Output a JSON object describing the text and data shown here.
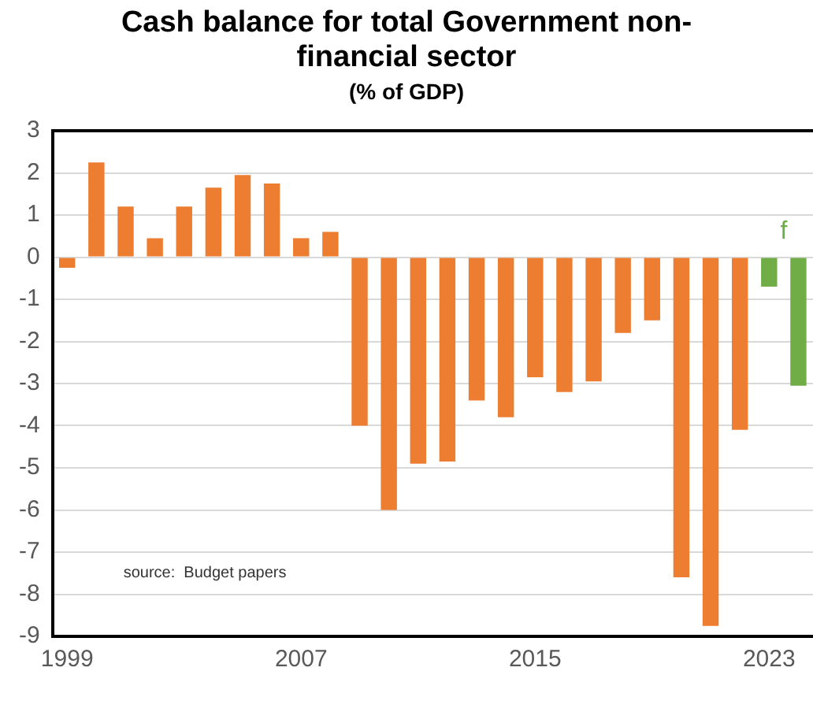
{
  "chart_data": {
    "type": "bar",
    "title": "Cash balance for total Government non-financial sector",
    "subtitle": "(% of GDP)",
    "categories": [
      "1999",
      null,
      null,
      null,
      null,
      null,
      null,
      null,
      "2007",
      null,
      null,
      null,
      null,
      null,
      null,
      null,
      "2015",
      null,
      null,
      null,
      null,
      null,
      null,
      null,
      "2023",
      null
    ],
    "values": [
      -0.25,
      2.25,
      1.2,
      0.45,
      1.2,
      1.65,
      1.95,
      1.75,
      0.45,
      0.6,
      -4.0,
      -6.0,
      -4.9,
      -4.85,
      -3.4,
      -3.8,
      -2.85,
      -3.2,
      -2.95,
      -1.8,
      -1.5,
      -7.6,
      -8.75,
      -4.1,
      -0.7,
      -3.05
    ],
    "colors": [
      "#ed7d31",
      "#ed7d31",
      "#ed7d31",
      "#ed7d31",
      "#ed7d31",
      "#ed7d31",
      "#ed7d31",
      "#ed7d31",
      "#ed7d31",
      "#ed7d31",
      "#ed7d31",
      "#ed7d31",
      "#ed7d31",
      "#ed7d31",
      "#ed7d31",
      "#ed7d31",
      "#ed7d31",
      "#ed7d31",
      "#ed7d31",
      "#ed7d31",
      "#ed7d31",
      "#ed7d31",
      "#ed7d31",
      "#ed7d31",
      "#70ad47",
      "#70ad47"
    ],
    "ylim": [
      -9,
      3
    ],
    "yticks": [
      -9,
      -8,
      -7,
      -6,
      -5,
      -4,
      -3,
      -2,
      -1,
      0,
      1,
      2,
      3
    ],
    "grid": "y",
    "legend": false,
    "annotations": [
      "source:  Budget papers",
      "f"
    ]
  }
}
